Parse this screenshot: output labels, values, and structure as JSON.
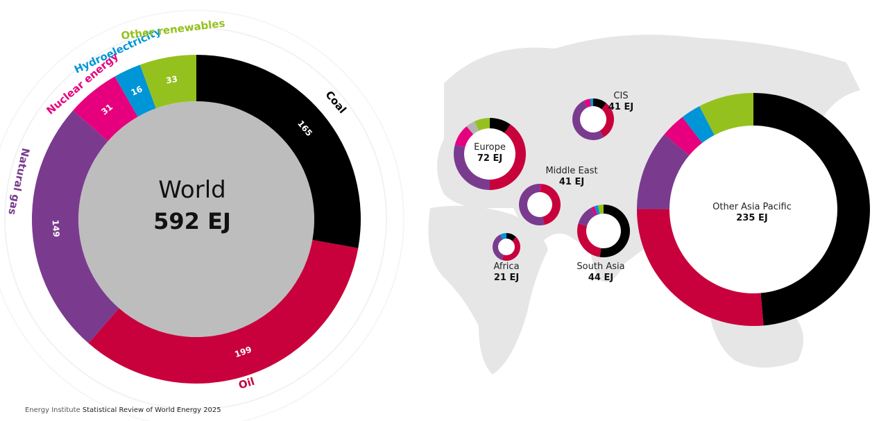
{
  "colors": {
    "coal": "#000000",
    "oil": "#c8003c",
    "natural_gas": "#7a3b8f",
    "nuclear": "#e6007e",
    "hydro": "#0095d6",
    "renewables": "#95c11f",
    "other": "#b4b4b4",
    "map": "#e6e6e6",
    "globe": "#bdbdbd"
  },
  "footer": {
    "publisher": "Energy Institute",
    "title": "Statistical Review of World Energy 2025"
  },
  "chart_data": [
    {
      "type": "pie",
      "title": "World",
      "total_label": "592 EJ",
      "categories": [
        "Coal",
        "Oil",
        "Natural gas",
        "Nuclear energy",
        "Hydroelectricity",
        "Other renewables"
      ],
      "values": [
        165,
        199,
        149,
        31,
        16,
        33
      ],
      "value_labels": [
        "165",
        "199",
        "149",
        "31",
        "16",
        "33"
      ],
      "unit": "EJ"
    },
    {
      "type": "pie",
      "title": "Europe",
      "total_label": "72 EJ",
      "segments": [
        "coal",
        "oil",
        "natural_gas",
        "nuclear",
        "other",
        "renewables"
      ],
      "values": [
        7,
        29,
        21,
        7,
        3,
        5
      ]
    },
    {
      "type": "pie",
      "title": "CIS",
      "total_label": "41 EJ",
      "segments": [
        "coal",
        "oil",
        "natural_gas",
        "nuclear",
        "hydro"
      ],
      "values": [
        4.5,
        12.5,
        21,
        2,
        1
      ]
    },
    {
      "type": "pie",
      "title": "Middle East",
      "total_label": "41 EJ",
      "segments": [
        "nuclear",
        "oil",
        "natural_gas"
      ],
      "values": [
        0.5,
        18.5,
        22
      ]
    },
    {
      "type": "pie",
      "title": "Africa",
      "total_label": "21 EJ",
      "segments": [
        "coal",
        "oil",
        "natural_gas",
        "hydro"
      ],
      "values": [
        2.6,
        9,
        7.9,
        1.5
      ]
    },
    {
      "type": "pie",
      "title": "South Asia",
      "total_label": "44 EJ",
      "segments": [
        "coal",
        "oil",
        "natural_gas",
        "nuclear",
        "hydro",
        "renewables"
      ],
      "values": [
        23,
        12,
        5.5,
        1,
        1,
        1.5
      ]
    },
    {
      "type": "pie",
      "title": "Other Asia Pacific",
      "total_label": "235 EJ",
      "segments": [
        "coal",
        "oil",
        "natural_gas",
        "nuclear",
        "hydro",
        "renewables"
      ],
      "values": [
        114,
        62,
        26,
        8,
        6.5,
        18
      ]
    }
  ]
}
